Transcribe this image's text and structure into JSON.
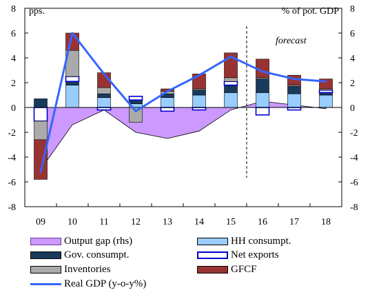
{
  "chart_data": {
    "type": "bar",
    "left_axis_unit": "pps.",
    "right_axis_unit": "% of pot. GDP",
    "annotation": "forecast",
    "categories": [
      "09",
      "10",
      "11",
      "12",
      "13",
      "14",
      "15",
      "16",
      "17",
      "18"
    ],
    "ylim": [
      -8,
      8
    ],
    "y_ticks": [
      8,
      6,
      4,
      2,
      0,
      -2,
      -4,
      -6,
      -8
    ],
    "y2lim": [
      -8,
      8
    ],
    "y2_ticks": [
      8,
      6,
      4,
      2,
      0,
      -2,
      -4,
      -6,
      -8
    ],
    "forecast_start_category": "16",
    "series": [
      {
        "name": "Output gap (rhs)",
        "kind": "area",
        "axis": "right",
        "color": "#cc99ff",
        "values": [
          -5.0,
          -1.4,
          -0.2,
          -2.0,
          -2.5,
          -1.9,
          -0.2,
          0.5,
          0.2,
          -0.1
        ]
      },
      {
        "name": "HH consumpt.",
        "kind": "stacked_bar",
        "color": "#99ccff",
        "values": [
          0.0,
          1.8,
          0.8,
          0.3,
          0.8,
          1.0,
          1.2,
          1.2,
          1.1,
          1.0
        ]
      },
      {
        "name": "Gov. consumpt.",
        "kind": "stacked_bar",
        "color": "#1a3a5c",
        "values": [
          0.7,
          0.3,
          0.3,
          0.3,
          0.3,
          0.4,
          0.6,
          1.1,
          0.6,
          0.2
        ]
      },
      {
        "name": "Net exports",
        "kind": "stacked_bar",
        "color": "#ffffff",
        "values": [
          -1.1,
          0.4,
          -0.2,
          0.3,
          -0.3,
          -0.2,
          0.3,
          -0.6,
          -0.2,
          0.2
        ]
      },
      {
        "name": "Inventories",
        "kind": "stacked_bar",
        "color": "#aaaaaa",
        "values": [
          -1.5,
          2.1,
          0.5,
          -1.2,
          0.2,
          0.1,
          0.3,
          0.1,
          0.1,
          0.1
        ]
      },
      {
        "name": "GFCF",
        "kind": "stacked_bar",
        "color": "#993333",
        "values": [
          -3.2,
          1.4,
          1.2,
          0.0,
          0.2,
          1.2,
          2.0,
          1.5,
          0.8,
          0.8
        ]
      },
      {
        "name": "Real GDP (y-o-y%)",
        "kind": "line",
        "color": "#3366ff",
        "values": [
          -5.2,
          6.0,
          2.7,
          -0.3,
          1.3,
          2.6,
          4.1,
          2.9,
          2.3,
          2.1
        ]
      }
    ],
    "legend": {
      "placement": "bottom",
      "columns": 2
    }
  }
}
